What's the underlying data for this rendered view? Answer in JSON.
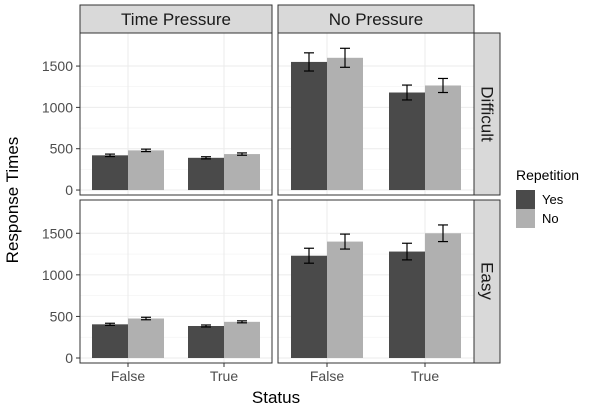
{
  "chart_data": {
    "type": "bar",
    "xlabel": "Status",
    "ylabel": "Response Times",
    "categories": [
      "False",
      "True"
    ],
    "ylim": [
      -60,
      1900
    ],
    "yticks": [
      0,
      500,
      1000,
      1500
    ],
    "columns": [
      "Time Pressure",
      "No Pressure"
    ],
    "rows": [
      "Difficult",
      "Easy"
    ],
    "legend": {
      "title": "Repetition",
      "items": [
        {
          "name": "Yes",
          "color": "#4a4a4a"
        },
        {
          "name": "No",
          "color": "#b0b0b0"
        }
      ],
      "placement": "right"
    },
    "grid": true,
    "panels": [
      {
        "column": "Time Pressure",
        "row": "Difficult",
        "series": [
          {
            "name": "Yes",
            "values": [
              420,
              390
            ],
            "errors": [
              15,
              13
            ]
          },
          {
            "name": "No",
            "values": [
              480,
              435
            ],
            "errors": [
              15,
              14
            ]
          }
        ]
      },
      {
        "column": "No Pressure",
        "row": "Difficult",
        "series": [
          {
            "name": "Yes",
            "values": [
              1550,
              1180
            ],
            "errors": [
              110,
              90
            ]
          },
          {
            "name": "No",
            "values": [
              1600,
              1265
            ],
            "errors": [
              115,
              85
            ]
          }
        ]
      },
      {
        "column": "Time Pressure",
        "row": "Easy",
        "series": [
          {
            "name": "Yes",
            "values": [
              405,
              385
            ],
            "errors": [
              13,
              12
            ]
          },
          {
            "name": "No",
            "values": [
              475,
              435
            ],
            "errors": [
              15,
              12
            ]
          }
        ]
      },
      {
        "column": "No Pressure",
        "row": "Easy",
        "series": [
          {
            "name": "Yes",
            "values": [
              1230,
              1280
            ],
            "errors": [
              90,
              100
            ]
          },
          {
            "name": "No",
            "values": [
              1400,
              1500
            ],
            "errors": [
              90,
              100
            ]
          }
        ]
      }
    ]
  }
}
